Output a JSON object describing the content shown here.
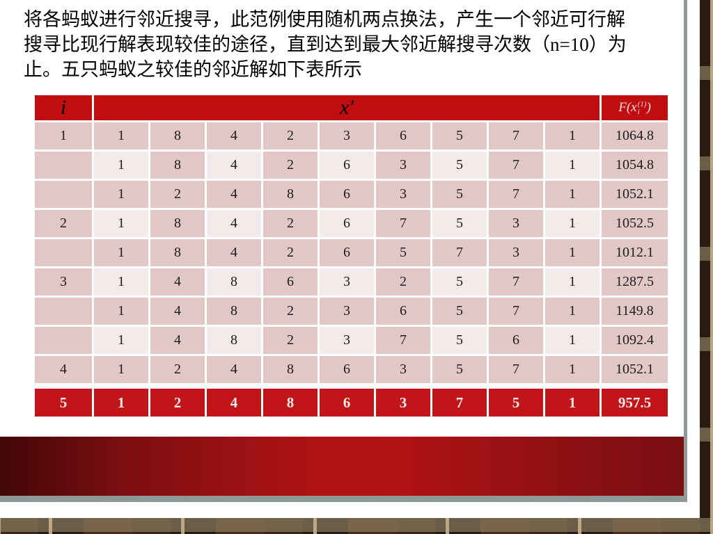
{
  "intro": {
    "lines": [
      "将各蚂蚁进行邻近搜寻，此范例使用随机两点换法，产生一个邻近可行解",
      "搜寻比现行解表现较佳的途径，直到达到最大邻近解搜寻次数（n=10）为",
      "止。五只蚂蚁之较佳的邻近解如下表所示"
    ]
  },
  "table": {
    "headers": {
      "i": "i",
      "x": "x′",
      "f_open": "F(",
      "f_x": "x",
      "f_sup": "(1)",
      "f_sub": "i",
      "f_close": ")"
    },
    "rows": [
      {
        "i": "1",
        "values": [
          "1",
          "8",
          "4",
          "2",
          "3",
          "6",
          "5",
          "7",
          "1"
        ],
        "f": "1064.8",
        "banded": false,
        "result": false
      },
      {
        "i": "",
        "values": [
          "1",
          "8",
          "4",
          "2",
          "6",
          "3",
          "5",
          "7",
          "1"
        ],
        "f": "1054.8",
        "banded": true,
        "result": false
      },
      {
        "i": "",
        "values": [
          "1",
          "2",
          "4",
          "8",
          "6",
          "3",
          "5",
          "7",
          "1"
        ],
        "f": "1052.1",
        "banded": false,
        "result": false
      },
      {
        "i": "2",
        "values": [
          "1",
          "8",
          "4",
          "2",
          "6",
          "7",
          "5",
          "3",
          "1"
        ],
        "f": "1052.5",
        "banded": true,
        "result": false
      },
      {
        "i": "",
        "values": [
          "1",
          "8",
          "4",
          "2",
          "6",
          "5",
          "7",
          "3",
          "1"
        ],
        "f": "1012.1",
        "banded": false,
        "result": false
      },
      {
        "i": "3",
        "values": [
          "1",
          "4",
          "8",
          "6",
          "3",
          "2",
          "5",
          "7",
          "1"
        ],
        "f": "1287.5",
        "banded": true,
        "result": false
      },
      {
        "i": "",
        "values": [
          "1",
          "4",
          "8",
          "2",
          "3",
          "6",
          "5",
          "7",
          "1"
        ],
        "f": "1149.8",
        "banded": false,
        "result": false
      },
      {
        "i": "",
        "values": [
          "1",
          "4",
          "8",
          "2",
          "3",
          "7",
          "5",
          "6",
          "1"
        ],
        "f": "1092.4",
        "banded": true,
        "result": false
      },
      {
        "i": "4",
        "values": [
          "1",
          "2",
          "4",
          "8",
          "6",
          "3",
          "5",
          "7",
          "1"
        ],
        "f": "1052.1",
        "banded": false,
        "result": false
      },
      {
        "i": "5",
        "values": [
          "1",
          "2",
          "4",
          "8",
          "6",
          "3",
          "7",
          "5",
          "1"
        ],
        "f": "957.5",
        "banded": false,
        "result": true
      }
    ]
  },
  "colors": {
    "header_red": "#c00d10",
    "result_red": "#c1151a",
    "cell_medium": "#e2c7c7",
    "cell_light": "#f3eaea",
    "band_dark": "#420708",
    "band_bright": "#b01215",
    "edge_shadow_gray": "#8f9897",
    "text_black": "#111111"
  }
}
